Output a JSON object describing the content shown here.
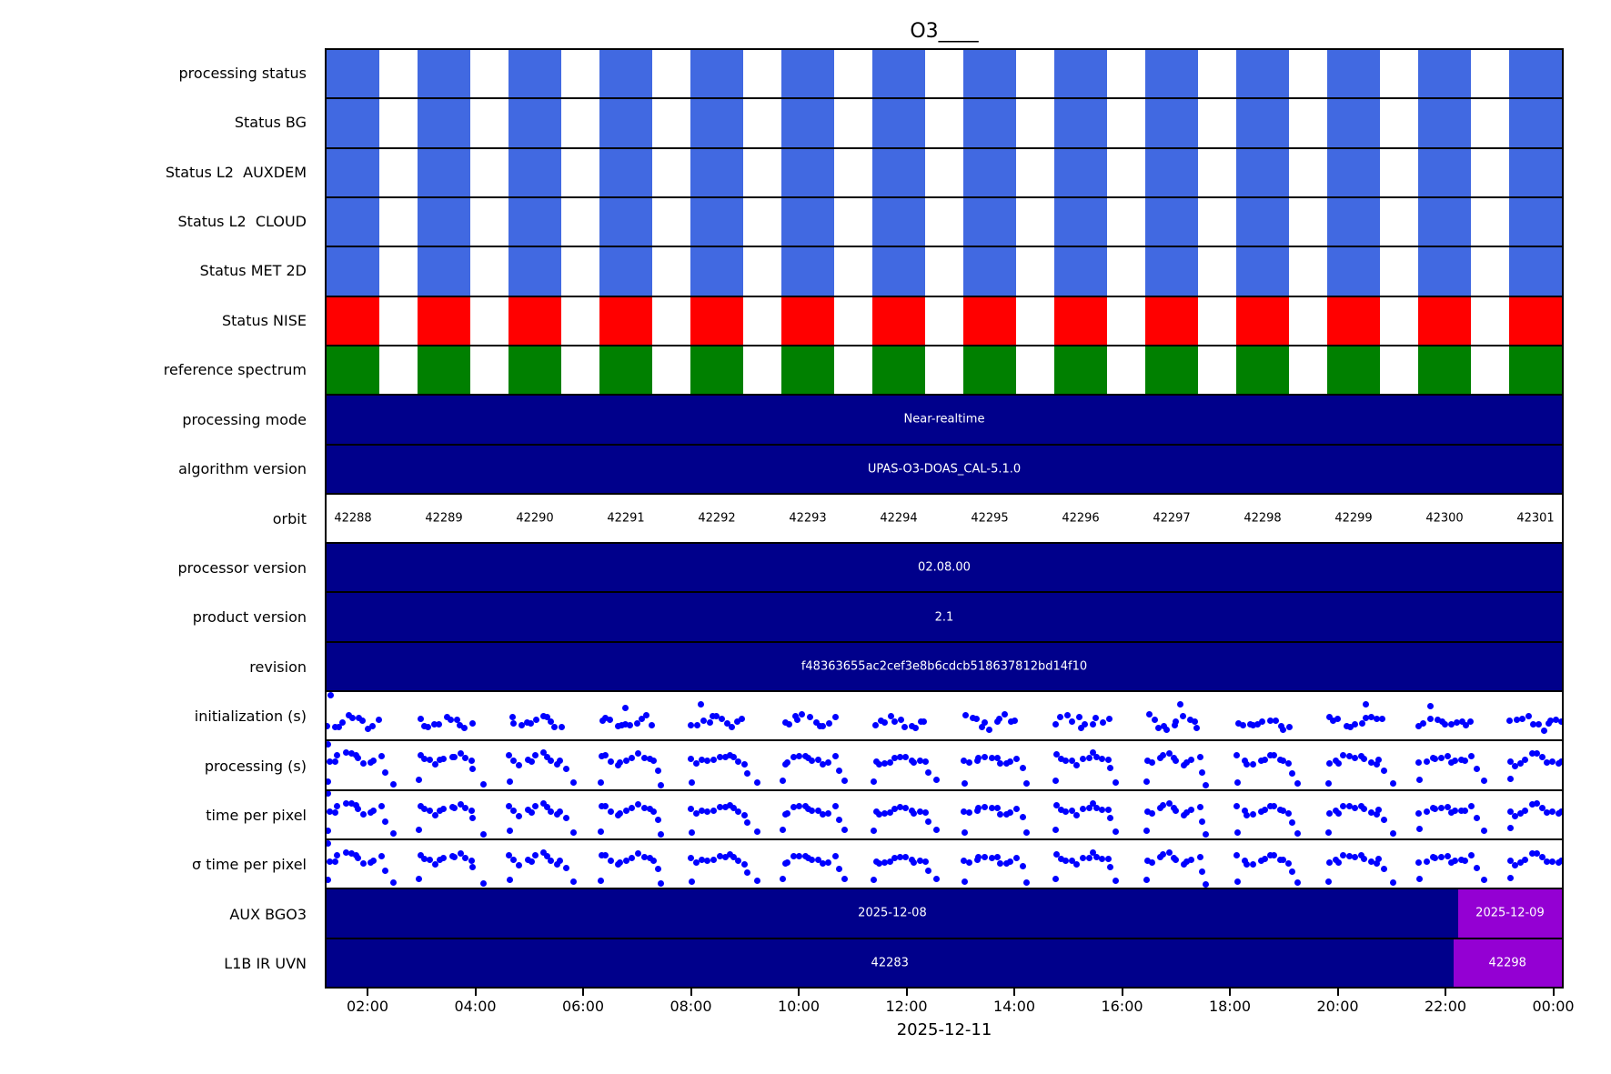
{
  "title": "O3____",
  "xlabel": "2025-12-11",
  "colors": {
    "status_ok": "#4169E1",
    "status_error": "#FF0000",
    "status_ref": "#008000",
    "navy": "#00008B",
    "purple": "#9400D3",
    "dot": "#0000FF",
    "axis": "#000000",
    "text_on_dark": "#FFFFFF"
  },
  "xticks": [
    "02:00",
    "04:00",
    "06:00",
    "08:00",
    "10:00",
    "12:00",
    "14:00",
    "16:00",
    "18:00",
    "20:00",
    "22:00",
    "00:00"
  ],
  "orbits": [
    "42288",
    "42289",
    "42290",
    "42291",
    "42292",
    "42293",
    "42294",
    "42295",
    "42296",
    "42297",
    "42298",
    "42299",
    "42300",
    "42301"
  ],
  "rows": [
    {
      "label": "processing status",
      "type": "blocks",
      "color_key": "status_ok"
    },
    {
      "label": "Status BG",
      "type": "blocks",
      "color_key": "status_ok"
    },
    {
      "label": "Status L2  AUXDEM",
      "type": "blocks",
      "color_key": "status_ok"
    },
    {
      "label": "Status L2  CLOUD",
      "type": "blocks",
      "color_key": "status_ok"
    },
    {
      "label": "Status MET 2D",
      "type": "blocks",
      "color_key": "status_ok"
    },
    {
      "label": "Status NISE",
      "type": "blocks",
      "color_key": "status_error"
    },
    {
      "label": "reference spectrum",
      "type": "blocks",
      "color_key": "status_ref"
    },
    {
      "label": "processing mode",
      "type": "text",
      "text": "Near-realtime"
    },
    {
      "label": "algorithm version",
      "type": "text",
      "text": "UPAS-O3-DOAS_CAL-5.1.0"
    },
    {
      "label": "orbit",
      "type": "orbit"
    },
    {
      "label": "processor version",
      "type": "text",
      "text": "02.08.00"
    },
    {
      "label": "product version",
      "type": "text",
      "text": "2.1"
    },
    {
      "label": "revision",
      "type": "text",
      "text": "f48363655ac2cef3e8b6cdcb518637812bd14f10"
    },
    {
      "label": "initialization (s)",
      "type": "scatter",
      "band": 0.62,
      "amp": 0.1,
      "jitter": 0.18,
      "outliers": false,
      "seed": 7
    },
    {
      "label": "processing (s)",
      "type": "scatter",
      "band": 0.36,
      "amp": 0.08,
      "jitter": 0.12,
      "outliers": true,
      "seed": 13
    },
    {
      "label": "time per pixel",
      "type": "scatter",
      "band": 0.38,
      "amp": 0.08,
      "jitter": 0.12,
      "outliers": true,
      "seed": 13
    },
    {
      "label": "σ time per pixel",
      "type": "scatter",
      "band": 0.38,
      "amp": 0.08,
      "jitter": 0.12,
      "outliers": true,
      "seed": 13
    },
    {
      "label": "AUX BGO3",
      "type": "split",
      "text": "2025-12-08",
      "text2": "2025-12-09",
      "split": 0.916
    },
    {
      "label": "L1B IR UVN",
      "type": "split",
      "text": "42283",
      "text2": "42298",
      "split": 0.912
    }
  ],
  "chart_data": {
    "type": "heatmap",
    "title": "O3____",
    "xlabel": "2025-12-11",
    "x_ticks": [
      "02:00",
      "04:00",
      "06:00",
      "08:00",
      "10:00",
      "12:00",
      "14:00",
      "16:00",
      "18:00",
      "20:00",
      "22:00",
      "00:00"
    ],
    "orbits": [
      42288,
      42289,
      42290,
      42291,
      42292,
      42293,
      42294,
      42295,
      42296,
      42297,
      42298,
      42299,
      42300,
      42301
    ],
    "legend_position": "none",
    "grid": "row separators only",
    "rows": [
      {
        "label": "processing status",
        "kind": "status-blocks",
        "color": "#4169E1",
        "present_for_orbits": "all 14"
      },
      {
        "label": "Status BG",
        "kind": "status-blocks",
        "color": "#4169E1",
        "present_for_orbits": "all 14"
      },
      {
        "label": "Status L2  AUXDEM",
        "kind": "status-blocks",
        "color": "#4169E1",
        "present_for_orbits": "all 14"
      },
      {
        "label": "Status L2  CLOUD",
        "kind": "status-blocks",
        "color": "#4169E1",
        "present_for_orbits": "all 14"
      },
      {
        "label": "Status MET 2D",
        "kind": "status-blocks",
        "color": "#4169E1",
        "present_for_orbits": "all 14"
      },
      {
        "label": "Status NISE",
        "kind": "status-blocks",
        "color": "#FF0000",
        "present_for_orbits": "all 14"
      },
      {
        "label": "reference spectrum",
        "kind": "status-blocks",
        "color": "#008000",
        "present_for_orbits": "all 14"
      },
      {
        "label": "processing mode",
        "kind": "text-bar",
        "value": "Near-realtime",
        "span": "full day"
      },
      {
        "label": "algorithm version",
        "kind": "text-bar",
        "value": "UPAS-O3-DOAS_CAL-5.1.0",
        "span": "full day"
      },
      {
        "label": "orbit",
        "kind": "per-orbit-text",
        "values": [
          "42288",
          "42289",
          "42290",
          "42291",
          "42292",
          "42293",
          "42294",
          "42295",
          "42296",
          "42297",
          "42298",
          "42299",
          "42300",
          "42301"
        ]
      },
      {
        "label": "processor version",
        "kind": "text-bar",
        "value": "02.08.00",
        "span": "full day"
      },
      {
        "label": "product version",
        "kind": "text-bar",
        "value": "2.1",
        "span": "full day"
      },
      {
        "label": "revision",
        "kind": "text-bar",
        "value": "f48363655ac2cef3e8b6cdcb518637812bd14f10",
        "span": "full day"
      },
      {
        "label": "initialization (s)",
        "kind": "scatter",
        "points": "~12 blue dots per orbit in a wavy band; no numeric y-axis shown"
      },
      {
        "label": "processing (s)",
        "kind": "scatter",
        "points": "~12 blue dots per orbit in a wavy band with low outliers at orbit edges; no numeric y-axis shown"
      },
      {
        "label": "time per pixel",
        "kind": "scatter",
        "points": "same pattern as processing (s)"
      },
      {
        "label": "σ time per pixel",
        "kind": "scatter",
        "points": "same pattern as processing (s)"
      },
      {
        "label": "AUX BGO3",
        "kind": "split-text-bar",
        "segments": [
          {
            "value": "2025-12-08",
            "until": "~22:15"
          },
          {
            "value": "2025-12-09",
            "from": "~22:15",
            "color": "#9400D3"
          }
        ]
      },
      {
        "label": "L1B IR UVN",
        "kind": "split-text-bar",
        "segments": [
          {
            "value": "42283",
            "until": "~22:10"
          },
          {
            "value": "42298",
            "from": "~22:10",
            "color": "#9400D3"
          }
        ]
      }
    ]
  }
}
